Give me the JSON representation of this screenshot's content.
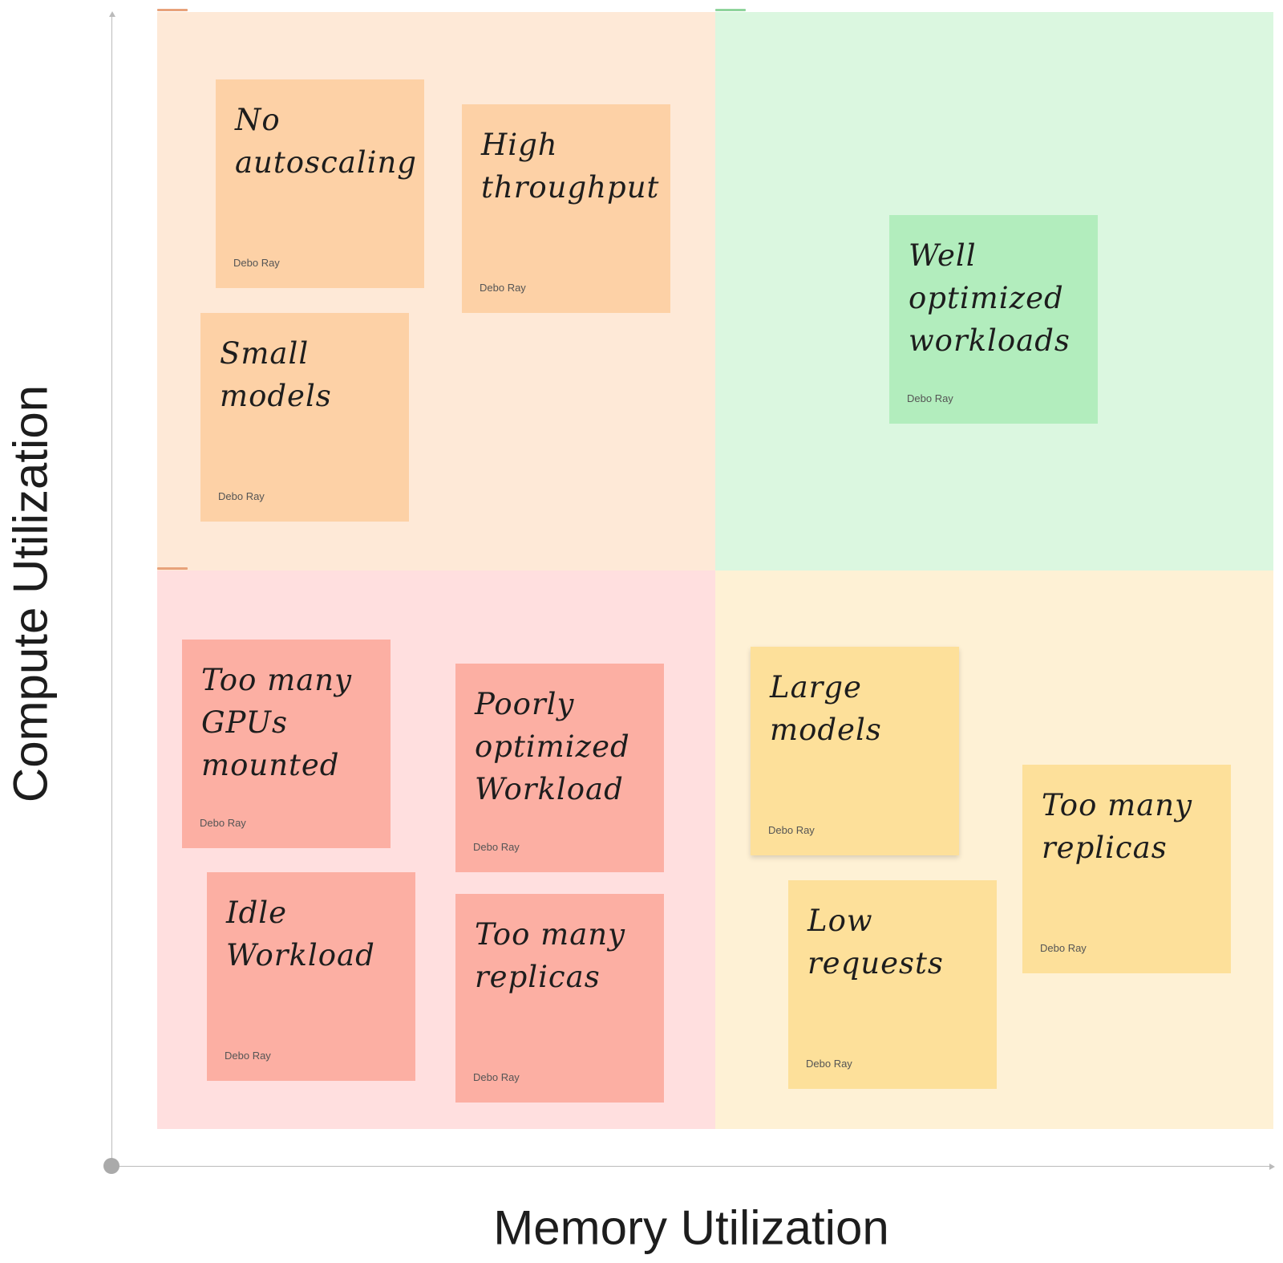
{
  "axes": {
    "y_label": "Compute Utilization",
    "x_label": "Memory Utilization"
  },
  "colors": {
    "top_left_quadrant": "#fee9d7",
    "top_right_quadrant": "#dbf7e0",
    "bottom_left_quadrant": "#ffdfdf",
    "bottom_right_quadrant": "#fef1d5",
    "orange_note": "#fdd1a6",
    "green_note": "#b2edbd",
    "red_note": "#fcafa3",
    "yellow_note": "#fde09a"
  },
  "notes": [
    {
      "text": "No autoscaling",
      "author": "Debo Ray",
      "quadrant": "top-left"
    },
    {
      "text": "High throughput",
      "author": "Debo Ray",
      "quadrant": "top-left"
    },
    {
      "text": "Small models",
      "author": "Debo Ray",
      "quadrant": "top-left"
    },
    {
      "text": "Well optimized workloads",
      "author": "Debo Ray",
      "quadrant": "top-right"
    },
    {
      "text": "Too many GPUs mounted",
      "author": "Debo Ray",
      "quadrant": "bottom-left"
    },
    {
      "text": "Poorly optimized Workload",
      "author": "Debo Ray",
      "quadrant": "bottom-left"
    },
    {
      "text": "Idle Workload",
      "author": "Debo Ray",
      "quadrant": "bottom-left"
    },
    {
      "text": "Too many replicas",
      "author": "Debo Ray",
      "quadrant": "bottom-left"
    },
    {
      "text": "Large models",
      "author": "Debo Ray",
      "quadrant": "bottom-right"
    },
    {
      "text": "Low requests",
      "author": "Debo Ray",
      "quadrant": "bottom-right"
    },
    {
      "text": "Too many replicas",
      "author": "Debo Ray",
      "quadrant": "bottom-right"
    }
  ]
}
